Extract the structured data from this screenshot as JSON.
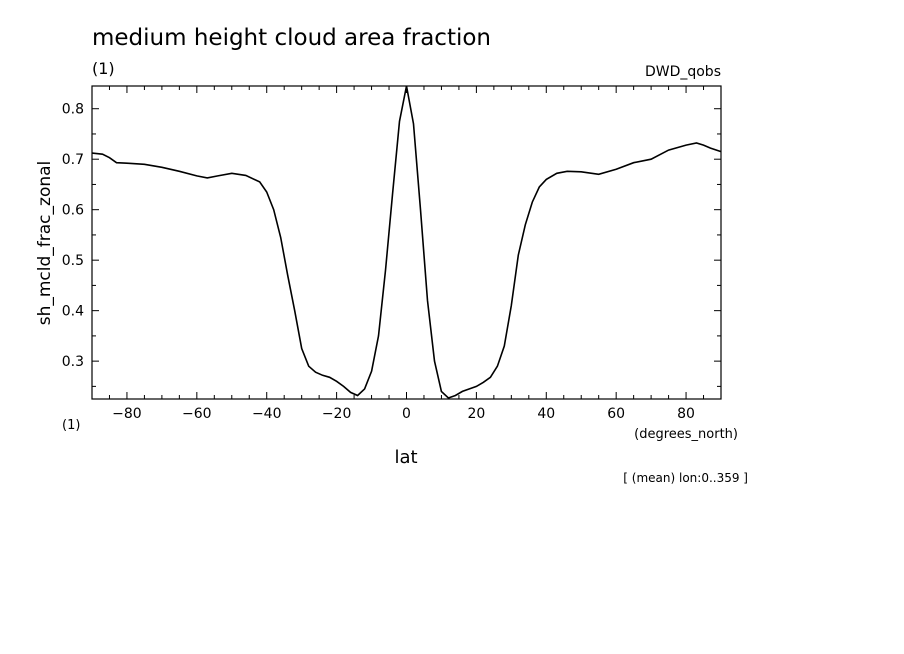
{
  "chart_data": {
    "type": "line",
    "title": "medium height cloud area fraction",
    "units_left": "(1)",
    "source": "DWD_qobs",
    "ylabel": "sh_mcld_frac_zonal",
    "xlabel": "lat",
    "x_units": "(degrees_north)",
    "y_units_corner": "(1)",
    "footnote": "[ (mean) lon:0..359 ]",
    "xlim": [
      -90,
      90
    ],
    "ylim": [
      0.225,
      0.845
    ],
    "x_ticks": [
      -80,
      -60,
      -40,
      -20,
      0,
      20,
      40,
      60,
      80
    ],
    "y_ticks": [
      0.3,
      0.4,
      0.5,
      0.6,
      0.7,
      0.8
    ],
    "series": [
      {
        "x": [
          -90,
          -87,
          -85,
          -83,
          -80,
          -75,
          -70,
          -65,
          -60,
          -57,
          -54,
          -50,
          -46,
          -42,
          -40,
          -38,
          -36,
          -34,
          -32,
          -30,
          -28,
          -26,
          -24,
          -22,
          -20,
          -18,
          -16,
          -14,
          -12,
          -10,
          -8,
          -6,
          -4,
          -2,
          0,
          2,
          4,
          6,
          8,
          10,
          12,
          14,
          16,
          18,
          20,
          22,
          24,
          26,
          28,
          30,
          32,
          34,
          36,
          38,
          40,
          43,
          46,
          50,
          55,
          60,
          65,
          70,
          75,
          80,
          83,
          85,
          87,
          90
        ],
        "y": [
          0.712,
          0.71,
          0.703,
          0.693,
          0.692,
          0.69,
          0.684,
          0.676,
          0.667,
          0.663,
          0.667,
          0.672,
          0.668,
          0.655,
          0.635,
          0.6,
          0.545,
          0.47,
          0.4,
          0.325,
          0.29,
          0.278,
          0.272,
          0.268,
          0.26,
          0.25,
          0.238,
          0.232,
          0.245,
          0.28,
          0.35,
          0.48,
          0.63,
          0.775,
          0.845,
          0.77,
          0.6,
          0.42,
          0.3,
          0.24,
          0.227,
          0.232,
          0.24,
          0.245,
          0.25,
          0.258,
          0.268,
          0.29,
          0.33,
          0.41,
          0.51,
          0.57,
          0.615,
          0.645,
          0.66,
          0.672,
          0.676,
          0.675,
          0.67,
          0.68,
          0.693,
          0.7,
          0.718,
          0.728,
          0.732,
          0.728,
          0.722,
          0.715
        ]
      }
    ]
  }
}
